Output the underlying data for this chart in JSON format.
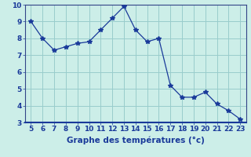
{
  "x": [
    5,
    6,
    7,
    8,
    9,
    10,
    11,
    12,
    13,
    14,
    15,
    16,
    17,
    18,
    19,
    20,
    21,
    22,
    23
  ],
  "y": [
    9.0,
    8.0,
    7.3,
    7.5,
    7.7,
    7.8,
    8.5,
    9.2,
    9.9,
    8.5,
    7.8,
    8.0,
    5.2,
    4.5,
    4.5,
    4.8,
    4.1,
    3.7,
    3.2
  ],
  "line_color": "#1a3a9a",
  "marker": "*",
  "marker_size": 4,
  "bg_color": "#cceee8",
  "grid_color": "#99cccc",
  "xlabel": "Graphe des températures (°c)",
  "xlabel_color": "#1a3a9a",
  "xlim": [
    4.5,
    23.5
  ],
  "ylim": [
    3,
    10
  ],
  "yticks": [
    3,
    4,
    5,
    6,
    7,
    8,
    9,
    10
  ],
  "xticks": [
    5,
    6,
    7,
    8,
    9,
    10,
    11,
    12,
    13,
    14,
    15,
    16,
    17,
    18,
    19,
    20,
    21,
    22,
    23
  ],
  "tick_label_color": "#1a3a9a",
  "tick_label_size": 6.5,
  "xlabel_fontsize": 7.5,
  "spine_color": "#334488",
  "bottom_spine_color": "#1a3a9a"
}
